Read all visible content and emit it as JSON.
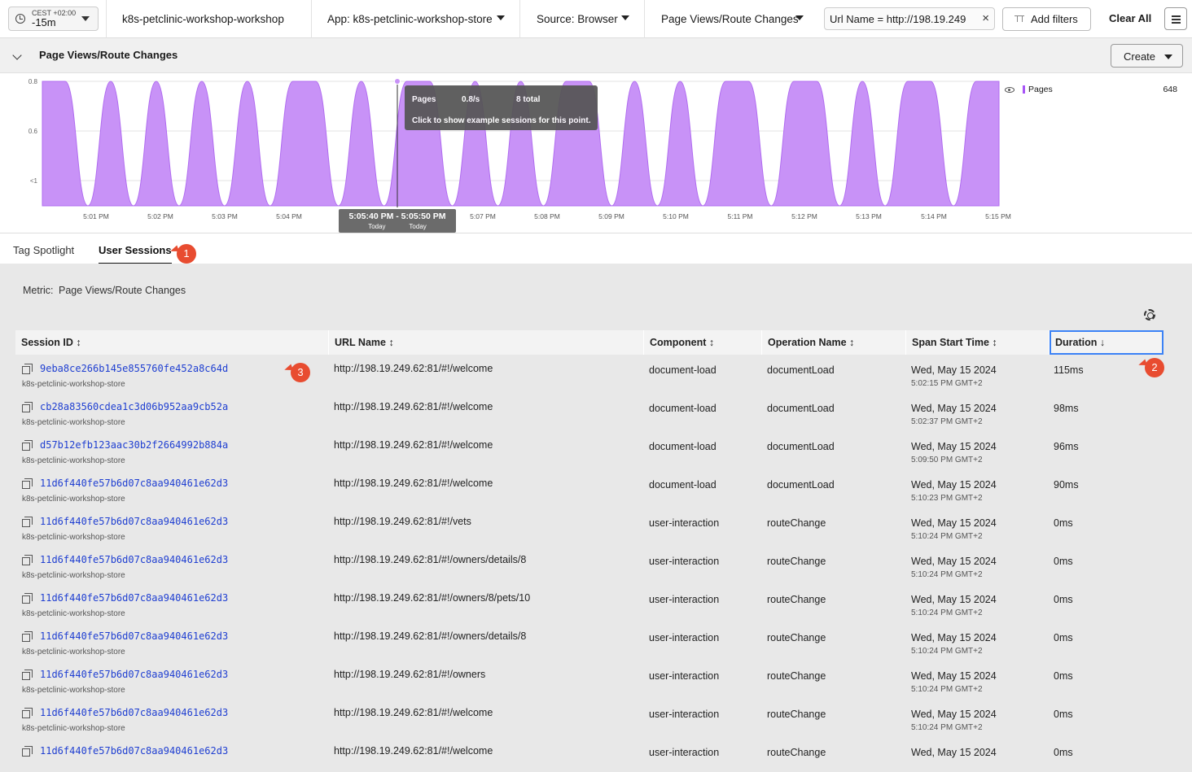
{
  "topbar": {
    "timezone": "CEST +02:00",
    "range": "-15m",
    "environment": "k8s-petclinic-workshop-workshop",
    "app": "App: k8s-petclinic-workshop-store",
    "source": "Source: Browser",
    "metric": "Page Views/Route Changes",
    "filter_pill": "Url Name = http://198.19.249",
    "add_filters": "Add filters",
    "clear_all": "Clear All"
  },
  "chart_section": {
    "title": "Page Views/Route Changes",
    "create_label": "Create",
    "tooltip": {
      "series": "Pages",
      "rate": "0.8/s",
      "total": "8 total",
      "hint": "Click to show example sessions for this point."
    },
    "range_badge": {
      "start": "5:05:40 PM",
      "sep": "-",
      "end": "5:05:50 PM",
      "start_sub": "Today",
      "end_sub": "Today"
    },
    "legend": {
      "name": "Pages",
      "value": "648"
    }
  },
  "chart_data": {
    "type": "area",
    "series": [
      {
        "name": "Pages",
        "color": "#c892f7",
        "values": [
          0.8,
          0.8,
          0,
          0.8,
          0,
          0.8,
          0,
          0.8,
          0,
          0.8,
          0,
          0.8,
          0.8,
          0,
          0.8,
          0,
          0.8,
          0.8,
          0,
          0.8,
          0,
          0.8,
          0,
          0.8,
          0.8,
          0,
          0.8,
          0,
          0.8,
          0,
          0.8,
          0.8,
          0,
          0.8,
          0.8,
          0,
          0.8,
          0,
          0.8,
          0.8,
          0,
          0.8,
          0.8
        ]
      }
    ],
    "y_ticks": [
      "0.8",
      "0.6",
      "<1"
    ],
    "x_ticks": [
      "5:01 PM",
      "5:02 PM",
      "5:03 PM",
      "5:04 PM",
      "5:07 PM",
      "5:08 PM",
      "5:09 PM",
      "5:10 PM",
      "5:11 PM",
      "5:12 PM",
      "5:13 PM",
      "5:14 PM",
      "5:15 PM"
    ],
    "ylim": [
      0,
      0.8
    ],
    "grid": true
  },
  "tabs": [
    {
      "label": "Tag Spotlight"
    },
    {
      "label": "User Sessions"
    }
  ],
  "content": {
    "metric_label": "Metric:",
    "metric_value": "Page Views/Route Changes",
    "columns": [
      "Session ID",
      "URL Name",
      "Component",
      "Operation Name",
      "Span Start Time",
      "Duration"
    ],
    "sort_up_down": "↕",
    "sort_desc": "↓",
    "rows": [
      {
        "sid": "9eba8ce266b145e855760fe452a8c64d",
        "app": "k8s-petclinic-workshop-store",
        "url": "http://198.19.249.62:81/#!/welcome",
        "component": "document-load",
        "op": "documentLoad",
        "date": "Wed, May 15 2024",
        "time": "5:02:15 PM GMT+2",
        "dur": "115ms"
      },
      {
        "sid": "cb28a83560cdea1c3d06b952aa9cb52a",
        "app": "k8s-petclinic-workshop-store",
        "url": "http://198.19.249.62:81/#!/welcome",
        "component": "document-load",
        "op": "documentLoad",
        "date": "Wed, May 15 2024",
        "time": "5:02:37 PM GMT+2",
        "dur": "98ms"
      },
      {
        "sid": "d57b12efb123aac30b2f2664992b884a",
        "app": "k8s-petclinic-workshop-store",
        "url": "http://198.19.249.62:81/#!/welcome",
        "component": "document-load",
        "op": "documentLoad",
        "date": "Wed, May 15 2024",
        "time": "5:09:50 PM GMT+2",
        "dur": "96ms"
      },
      {
        "sid": "11d6f440fe57b6d07c8aa940461e62d3",
        "app": "k8s-petclinic-workshop-store",
        "url": "http://198.19.249.62:81/#!/welcome",
        "component": "document-load",
        "op": "documentLoad",
        "date": "Wed, May 15 2024",
        "time": "5:10:23 PM GMT+2",
        "dur": "90ms"
      },
      {
        "sid": "11d6f440fe57b6d07c8aa940461e62d3",
        "app": "k8s-petclinic-workshop-store",
        "url": "http://198.19.249.62:81/#!/vets",
        "component": "user-interaction",
        "op": "routeChange",
        "date": "Wed, May 15 2024",
        "time": "5:10:24 PM GMT+2",
        "dur": "0ms"
      },
      {
        "sid": "11d6f440fe57b6d07c8aa940461e62d3",
        "app": "k8s-petclinic-workshop-store",
        "url": "http://198.19.249.62:81/#!/owners/details/8",
        "component": "user-interaction",
        "op": "routeChange",
        "date": "Wed, May 15 2024",
        "time": "5:10:24 PM GMT+2",
        "dur": "0ms"
      },
      {
        "sid": "11d6f440fe57b6d07c8aa940461e62d3",
        "app": "k8s-petclinic-workshop-store",
        "url": "http://198.19.249.62:81/#!/owners/8/pets/10",
        "component": "user-interaction",
        "op": "routeChange",
        "date": "Wed, May 15 2024",
        "time": "5:10:24 PM GMT+2",
        "dur": "0ms"
      },
      {
        "sid": "11d6f440fe57b6d07c8aa940461e62d3",
        "app": "k8s-petclinic-workshop-store",
        "url": "http://198.19.249.62:81/#!/owners/details/8",
        "component": "user-interaction",
        "op": "routeChange",
        "date": "Wed, May 15 2024",
        "time": "5:10:24 PM GMT+2",
        "dur": "0ms"
      },
      {
        "sid": "11d6f440fe57b6d07c8aa940461e62d3",
        "app": "k8s-petclinic-workshop-store",
        "url": "http://198.19.249.62:81/#!/owners",
        "component": "user-interaction",
        "op": "routeChange",
        "date": "Wed, May 15 2024",
        "time": "5:10:24 PM GMT+2",
        "dur": "0ms"
      },
      {
        "sid": "11d6f440fe57b6d07c8aa940461e62d3",
        "app": "k8s-petclinic-workshop-store",
        "url": "http://198.19.249.62:81/#!/welcome",
        "component": "user-interaction",
        "op": "routeChange",
        "date": "Wed, May 15 2024",
        "time": "5:10:24 PM GMT+2",
        "dur": "0ms"
      },
      {
        "sid": "11d6f440fe57b6d07c8aa940461e62d3",
        "app": "",
        "url": "http://198.19.249.62:81/#!/welcome",
        "component": "user-interaction",
        "op": "routeChange",
        "date": "Wed, May 15 2024",
        "time": "",
        "dur": "0ms"
      }
    ]
  },
  "callouts": [
    "1",
    "2",
    "3"
  ]
}
